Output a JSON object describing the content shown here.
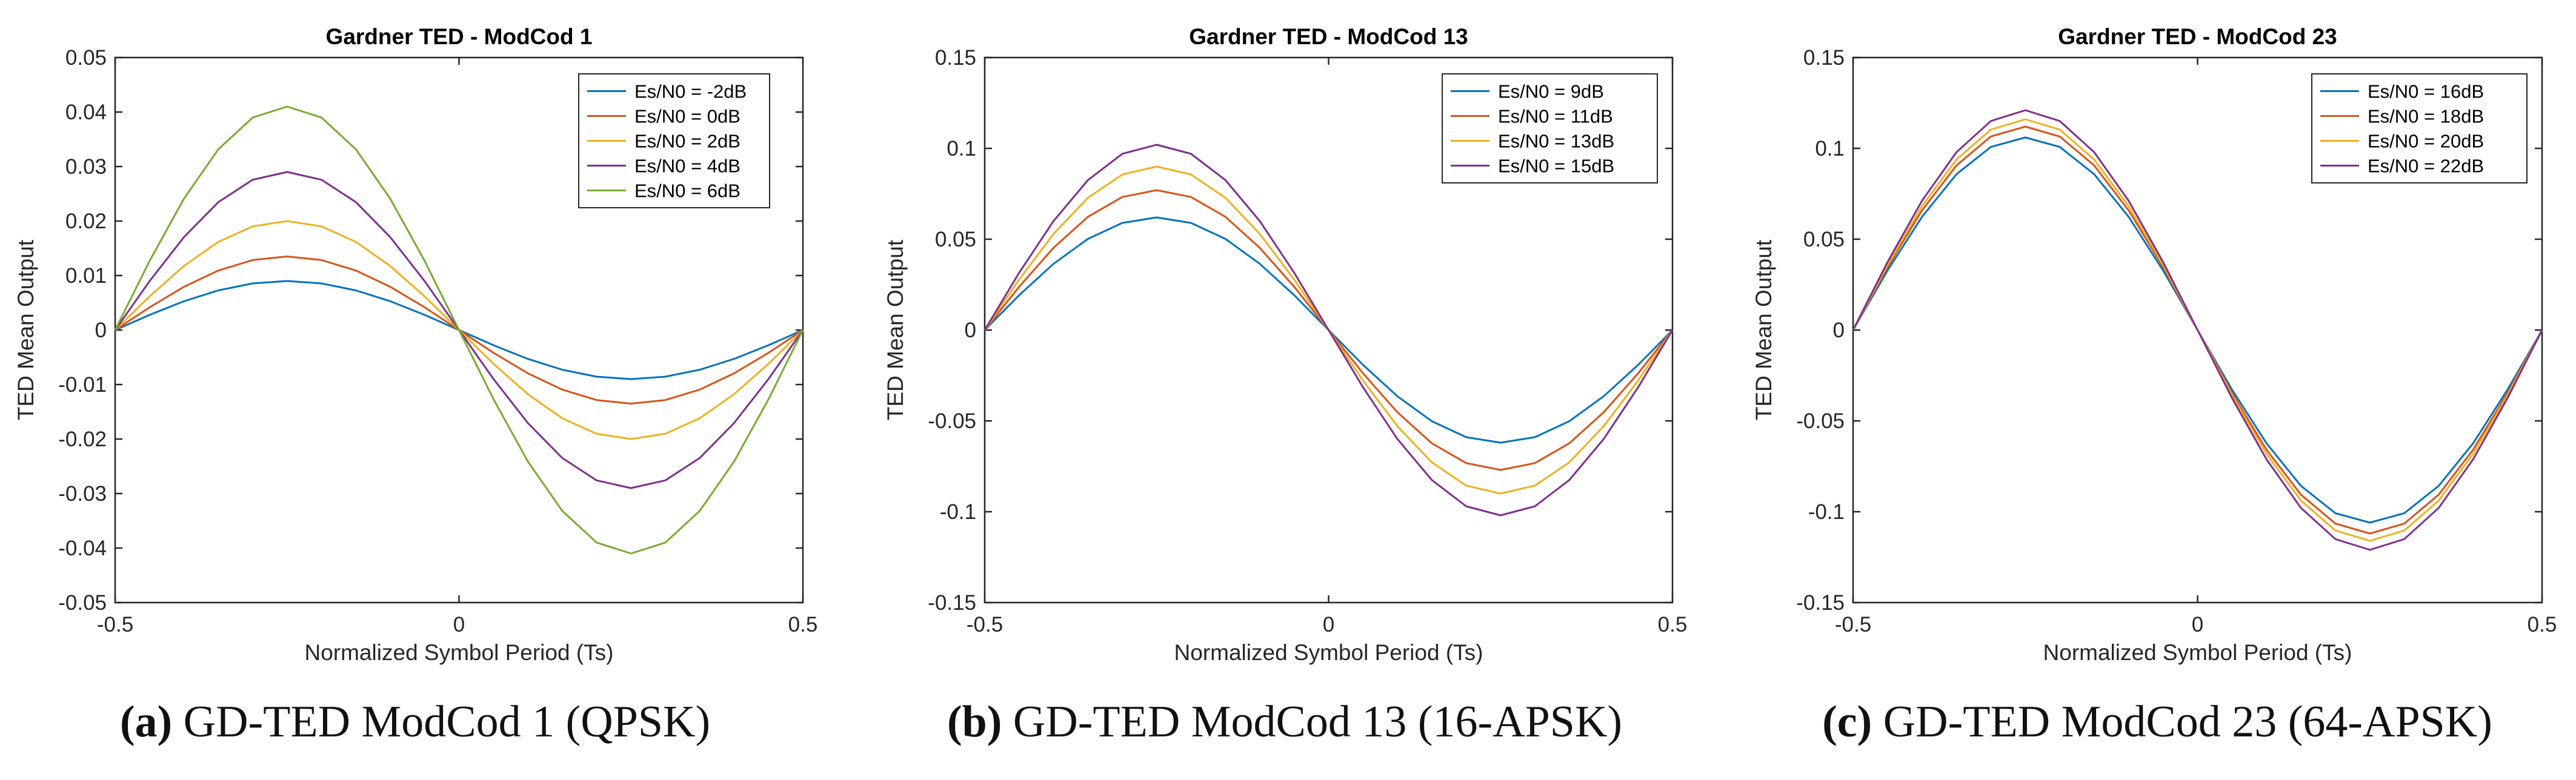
{
  "chart_data": [
    {
      "type": "line",
      "title": "Gardner TED - ModCod 1",
      "xlabel": "Normalized Symbol Period (Ts)",
      "ylabel": "TED Mean Output",
      "xlim": [
        -0.5,
        0.5
      ],
      "ylim": [
        -0.05,
        0.05
      ],
      "xticks": [
        -0.5,
        0,
        0.5
      ],
      "xtick_labels": [
        "-0.5",
        "0",
        "0.5"
      ],
      "yticks": [
        -0.05,
        -0.04,
        -0.03,
        -0.02,
        -0.01,
        0,
        0.01,
        0.02,
        0.03,
        0.04,
        0.05
      ],
      "ytick_labels": [
        "-0.05",
        "-0.04",
        "-0.03",
        "-0.02",
        "-0.01",
        "0",
        "0.01",
        "0.02",
        "0.03",
        "0.04",
        "0.05"
      ],
      "legend_position": "top-right",
      "series": [
        {
          "name": "Es/N0 = -2dB",
          "color": "#0072BD",
          "amplitude": 0.009
        },
        {
          "name": "Es/N0 = 0dB",
          "color": "#D95319",
          "amplitude": 0.0135
        },
        {
          "name": "Es/N0 = 2dB",
          "color": "#EDB120",
          "amplitude": 0.02
        },
        {
          "name": "Es/N0 = 4dB",
          "color": "#7E2F8E",
          "amplitude": 0.029
        },
        {
          "name": "Es/N0 = 6dB",
          "color": "#77AC30",
          "amplitude": 0.041
        }
      ]
    },
    {
      "type": "line",
      "title": "Gardner TED - ModCod 13",
      "xlabel": "Normalized Symbol Period (Ts)",
      "ylabel": "TED Mean Output",
      "xlim": [
        -0.5,
        0.5
      ],
      "ylim": [
        -0.15,
        0.15
      ],
      "xticks": [
        -0.5,
        0,
        0.5
      ],
      "xtick_labels": [
        "-0.5",
        "0",
        "0.5"
      ],
      "yticks": [
        -0.15,
        -0.1,
        -0.05,
        0,
        0.05,
        0.1,
        0.15
      ],
      "ytick_labels": [
        "-0.15",
        "-0.1",
        "-0.05",
        "0",
        "0.05",
        "0.1",
        "0.15"
      ],
      "legend_position": "top-right",
      "series": [
        {
          "name": "Es/N0 = 9dB",
          "color": "#0072BD",
          "amplitude": 0.062
        },
        {
          "name": "Es/N0 = 11dB",
          "color": "#D95319",
          "amplitude": 0.077
        },
        {
          "name": "Es/N0 = 13dB",
          "color": "#EDB120",
          "amplitude": 0.09
        },
        {
          "name": "Es/N0 = 15dB",
          "color": "#7E2F8E",
          "amplitude": 0.102
        }
      ]
    },
    {
      "type": "line",
      "title": "Gardner TED - ModCod 23",
      "xlabel": "Normalized Symbol Period (Ts)",
      "ylabel": "TED Mean Output",
      "xlim": [
        -0.5,
        0.5
      ],
      "ylim": [
        -0.15,
        0.15
      ],
      "xticks": [
        -0.5,
        0,
        0.5
      ],
      "xtick_labels": [
        "-0.5",
        "0",
        "0.5"
      ],
      "yticks": [
        -0.15,
        -0.1,
        -0.05,
        0,
        0.05,
        0.1,
        0.15
      ],
      "ytick_labels": [
        "-0.15",
        "-0.1",
        "-0.05",
        "0",
        "0.05",
        "0.1",
        "0.15"
      ],
      "legend_position": "top-right",
      "series": [
        {
          "name": "Es/N0 = 16dB",
          "color": "#0072BD",
          "amplitude": 0.106
        },
        {
          "name": "Es/N0 = 18dB",
          "color": "#D95319",
          "amplitude": 0.112
        },
        {
          "name": "Es/N0 = 20dB",
          "color": "#EDB120",
          "amplitude": 0.116
        },
        {
          "name": "Es/N0 = 22dB",
          "color": "#7E2F8E",
          "amplitude": 0.121
        }
      ]
    }
  ],
  "captions": [
    {
      "label": "(a)",
      "text": "GD-TED ModCod 1 (QPSK)"
    },
    {
      "label": "(b)",
      "text": "GD-TED ModCod 13 (16-APSK)"
    },
    {
      "label": "(c)",
      "text": "GD-TED ModCod 23 (64-APSK)"
    }
  ]
}
